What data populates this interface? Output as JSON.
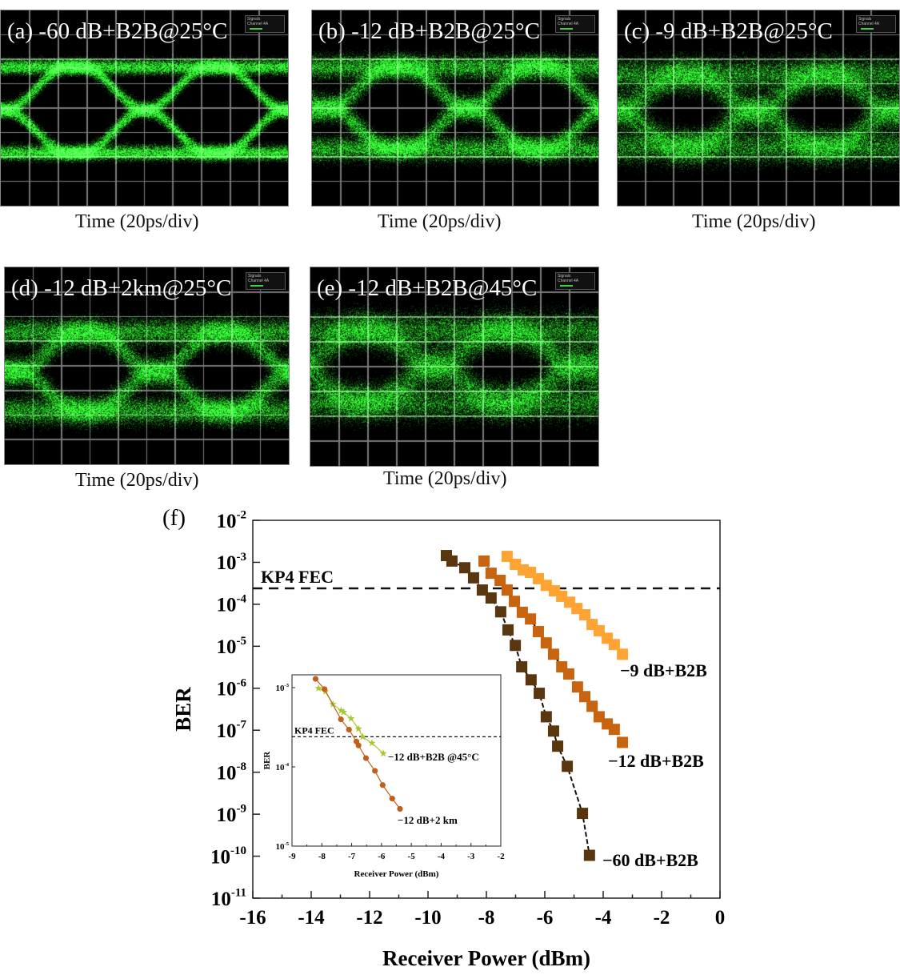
{
  "eye_panels": [
    {
      "id": "a",
      "title": "(a) -60 dB+B2B@25°C",
      "xlabel": "Time (20ps/div)",
      "legend_title": "Signals",
      "legend_channel": "Channel 4A"
    },
    {
      "id": "b",
      "title": "(b) -12 dB+B2B@25°C",
      "xlabel": "Time (20ps/div)",
      "legend_title": "Signals",
      "legend_channel": "Channel 4A"
    },
    {
      "id": "c",
      "title": "(c) -9 dB+B2B@25°C",
      "xlabel": "Time (20ps/div)",
      "legend_title": "Signals",
      "legend_channel": "Channel 4A"
    },
    {
      "id": "d",
      "title": "(d) -12 dB+2km@25°C",
      "xlabel": "Time (20ps/div)",
      "legend_title": "Signals",
      "legend_channel": "Channel 4A"
    },
    {
      "id": "e",
      "title": "(e) -12 dB+B2B@45°C",
      "xlabel": "Time (20ps/div)",
      "legend_title": "Signals",
      "legend_channel": "Channel 4A"
    }
  ],
  "chart_data": [
    {
      "panel_label": "(f)",
      "type": "scatter",
      "xlabel": "Receiver Power (dBm)",
      "ylabel": "BER",
      "xlim": [
        -16,
        0
      ],
      "ylim": [
        1e-11,
        0.01
      ],
      "yscale": "log",
      "xticks": [
        -16,
        -14,
        -12,
        -10,
        -8,
        -6,
        -4,
        -2,
        0
      ],
      "yticks_exp": [
        -2,
        -3,
        -4,
        -5,
        -6,
        -7,
        -8,
        -9,
        -10,
        -11
      ],
      "threshold": {
        "label": "KP4 FEC",
        "value": 0.00024
      },
      "series": [
        {
          "name": "−9 dB+B2B",
          "color": "#ffa332",
          "marker": "square",
          "x": [
            -7.29,
            -7.01,
            -6.74,
            -6.49,
            -6.22,
            -5.95,
            -5.67,
            -5.42,
            -5.15,
            -4.9,
            -4.63,
            -4.38,
            -4.14,
            -3.86,
            -3.62,
            -3.34
          ],
          "log10_y": [
            -2.86,
            -3.05,
            -3.18,
            -3.24,
            -3.39,
            -3.55,
            -3.68,
            -3.81,
            -3.95,
            -4.1,
            -4.25,
            -4.48,
            -4.63,
            -4.81,
            -4.96,
            -5.19
          ]
        },
        {
          "name": "−12 dB+B2B",
          "color": "#c8640f",
          "marker": "square",
          "x": [
            -8.08,
            -7.84,
            -7.53,
            -7.29,
            -7.04,
            -6.77,
            -6.49,
            -6.22,
            -5.95,
            -5.7,
            -5.42,
            -5.18,
            -4.88,
            -4.63,
            -4.38,
            -4.14,
            -3.86,
            -3.62,
            -3.34
          ],
          "log10_y": [
            -2.97,
            -3.26,
            -3.43,
            -3.66,
            -3.93,
            -4.19,
            -4.35,
            -4.65,
            -4.92,
            -5.19,
            -5.49,
            -5.66,
            -5.97,
            -6.2,
            -6.43,
            -6.68,
            -6.85,
            -6.98,
            -7.29
          ]
        },
        {
          "name": "−60 dB+B2B",
          "color": "#5a360f",
          "marker": "square",
          "x": [
            -9.37,
            -9.18,
            -8.74,
            -8.44,
            -8.14,
            -7.84,
            -7.51,
            -7.26,
            -7.01,
            -6.79,
            -6.47,
            -6.19,
            -5.95,
            -5.7,
            -5.56,
            -5.23,
            -4.71,
            -4.47
          ],
          "log10_y": [
            -2.84,
            -2.97,
            -3.13,
            -3.37,
            -3.66,
            -3.85,
            -4.18,
            -4.61,
            -4.98,
            -5.49,
            -5.8,
            -6.12,
            -6.68,
            -7.02,
            -7.38,
            -7.86,
            -8.98,
            -9.98
          ]
        }
      ]
    },
    {
      "panel_label": "inset",
      "type": "scatter",
      "xlabel": "Receiver Power (dBm)",
      "ylabel": "BER",
      "xlim": [
        -9,
        -2
      ],
      "ylim": [
        1e-05,
        0.00145
      ],
      "yscale": "log",
      "xticks": [
        -9,
        -8,
        -7,
        -6,
        -5,
        -4,
        -3,
        -2
      ],
      "yticks_exp": [
        -3,
        -4,
        -5
      ],
      "threshold": {
        "label": "KP4 FEC",
        "value": 0.00024
      },
      "series": [
        {
          "name": "−12 dB+B2B @45°C",
          "color": "#a8c832",
          "marker": "star",
          "x": [
            -8.11,
            -7.88,
            -7.63,
            -7.35,
            -7.27,
            -7.02,
            -6.77,
            -6.63,
            -6.32,
            -5.94
          ],
          "log10_y": [
            -3.01,
            -3.05,
            -3.21,
            -3.29,
            -3.31,
            -3.39,
            -3.52,
            -3.62,
            -3.7,
            -3.83
          ]
        },
        {
          "name": "−12 dB+2 km",
          "color": "#c0601a",
          "marker": "circle",
          "x": [
            -8.21,
            -7.91,
            -7.36,
            -7.09,
            -6.84,
            -6.77,
            -6.52,
            -6.22,
            -5.96,
            -5.64,
            -5.38
          ],
          "log10_y": [
            -2.89,
            -3.02,
            -3.4,
            -3.53,
            -3.68,
            -3.73,
            -3.89,
            -4.05,
            -4.23,
            -4.4,
            -4.53
          ]
        }
      ]
    }
  ]
}
